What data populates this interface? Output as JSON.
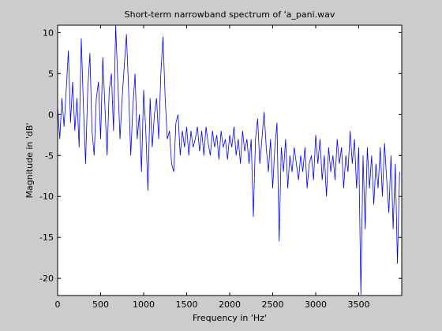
{
  "chart_data": {
    "type": "line",
    "title": "Short-term narrowband spectrum of 'a_pani.wav",
    "xlabel": "Frequency in 'Hz'",
    "ylabel": "Magnitude in 'dB'",
    "color": "#0000ff",
    "xlim": [
      0,
      4000
    ],
    "ylim": [
      -22.1,
      10.9
    ],
    "xticks": [
      0,
      500,
      1000,
      1500,
      2000,
      2500,
      3000,
      3500
    ],
    "yticks": [
      -20,
      -15,
      -10,
      -5,
      0,
      5,
      10
    ],
    "x": [
      0,
      25,
      50,
      75,
      100,
      125,
      150,
      175,
      200,
      225,
      250,
      275,
      300,
      325,
      350,
      375,
      400,
      425,
      450,
      475,
      500,
      525,
      550,
      575,
      600,
      625,
      650,
      675,
      700,
      725,
      750,
      775,
      800,
      825,
      850,
      875,
      900,
      925,
      950,
      975,
      1000,
      1025,
      1050,
      1075,
      1100,
      1125,
      1150,
      1175,
      1200,
      1225,
      1250,
      1275,
      1300,
      1325,
      1350,
      1375,
      1400,
      1425,
      1450,
      1475,
      1500,
      1525,
      1550,
      1575,
      1600,
      1625,
      1650,
      1675,
      1700,
      1725,
      1750,
      1775,
      1800,
      1825,
      1850,
      1875,
      1900,
      1925,
      1950,
      1975,
      2000,
      2025,
      2050,
      2075,
      2100,
      2125,
      2150,
      2175,
      2200,
      2225,
      2250,
      2275,
      2300,
      2325,
      2350,
      2375,
      2400,
      2425,
      2450,
      2475,
      2500,
      2525,
      2550,
      2575,
      2600,
      2625,
      2650,
      2675,
      2700,
      2725,
      2750,
      2775,
      2800,
      2825,
      2850,
      2875,
      2900,
      2925,
      2950,
      2975,
      3000,
      3025,
      3050,
      3075,
      3100,
      3125,
      3150,
      3175,
      3200,
      3225,
      3250,
      3275,
      3300,
      3325,
      3350,
      3375,
      3400,
      3425,
      3450,
      3475,
      3500,
      3525,
      3550,
      3575,
      3600,
      3625,
      3650,
      3675,
      3700,
      3725,
      3750,
      3775,
      3800,
      3825,
      3850,
      3875,
      3900,
      3925,
      3950,
      3975
    ],
    "values": [
      1,
      -3,
      2,
      -1.5,
      3,
      7.8,
      -1,
      4,
      -2,
      2,
      -4,
      9.3,
      1,
      -6,
      3,
      7.5,
      -2,
      -5,
      2,
      4,
      -3,
      7,
      1,
      -5,
      3,
      5,
      -2,
      10.9,
      4,
      -3,
      2,
      6,
      9.8,
      3,
      -5,
      1,
      5,
      -3,
      0,
      -7,
      3,
      -2,
      -9.3,
      2,
      -4,
      0,
      2,
      -3,
      5,
      9.5,
      2,
      -3,
      -2,
      -6,
      -7,
      -1,
      0,
      -5,
      -2,
      -4,
      -1.5,
      -5,
      -2,
      -4,
      -3,
      -1.5,
      -4.5,
      -2,
      -5,
      -1.5,
      -3.5,
      -5,
      -2,
      -4,
      -2.5,
      -5.5,
      -2,
      -4,
      -3,
      -5.5,
      -2.5,
      -4,
      -1.5,
      -5,
      -3,
      -6,
      -2,
      -4.5,
      -3,
      -6,
      -3,
      -12.5,
      -3,
      -0.5,
      -6,
      -3,
      0.3,
      -4,
      -7,
      -3,
      -9,
      -4,
      -1,
      -15.5,
      -4,
      -7,
      -3,
      -9,
      -5,
      -7,
      -4,
      -6,
      -8,
      -5,
      -7,
      -4,
      -9,
      -6,
      -5,
      -8,
      -2.5,
      -6,
      -3,
      -8,
      -5,
      -10,
      -4,
      -7,
      -5,
      -8,
      -3,
      -6,
      -4,
      -9,
      -5,
      -7,
      -2,
      -6,
      -3,
      -9,
      -4,
      -22,
      -5,
      -14,
      -4,
      -9,
      -5,
      -11,
      -6,
      -9,
      -4,
      -10,
      -3.5,
      -8,
      -12,
      -5,
      -14,
      -6,
      -18.2,
      -7
    ]
  }
}
